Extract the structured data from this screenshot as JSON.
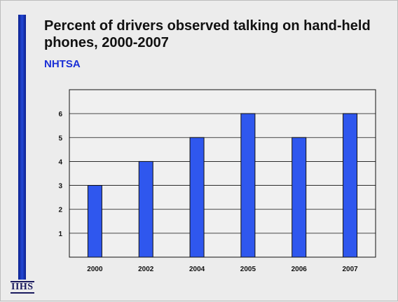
{
  "chart_data": {
    "type": "bar",
    "title": "Percent of drivers observed talking on hand-held phones, 2000-2007",
    "subtitle": "NHTSA",
    "categories": [
      "2000",
      "2002",
      "2004",
      "2005",
      "2006",
      "2007"
    ],
    "values": [
      3,
      4,
      5,
      6,
      5,
      6
    ],
    "yticks": [
      1,
      2,
      3,
      4,
      5,
      6
    ],
    "ylim": [
      0,
      7
    ],
    "grid": true,
    "bar_color": "#2f57ee",
    "xlabel": "",
    "ylabel": ""
  },
  "logo_text": "IIHS",
  "accent_color": "#1a2fd6"
}
